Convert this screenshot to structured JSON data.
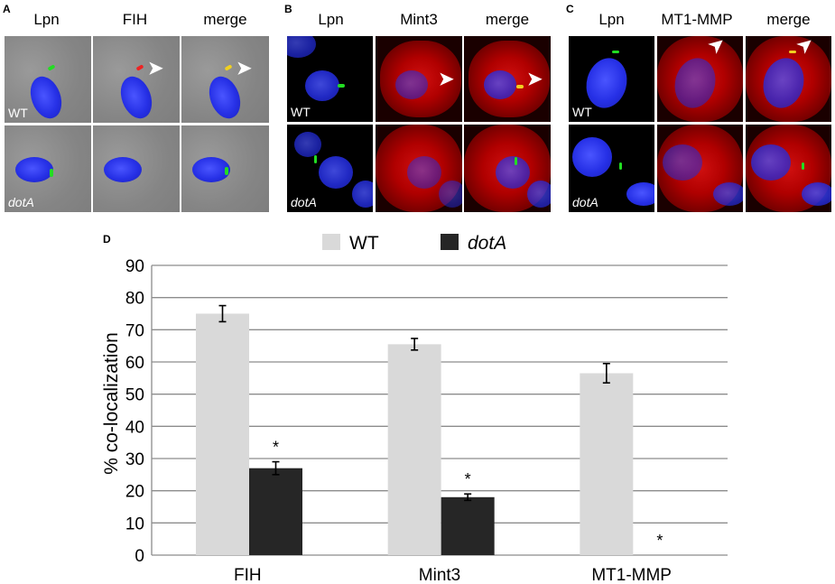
{
  "panels": {
    "A": {
      "letter": "A",
      "cols": [
        "Lpn",
        "FIH",
        "merge"
      ],
      "rows": [
        "WT",
        "dotA"
      ]
    },
    "B": {
      "letter": "B",
      "cols": [
        "Lpn",
        "Mint3",
        "merge"
      ],
      "rows": [
        "WT",
        "dotA"
      ]
    },
    "C": {
      "letter": "C",
      "cols": [
        "Lpn",
        "MT1-MMP",
        "merge"
      ],
      "rows": [
        "WT",
        "dotA"
      ]
    },
    "D": {
      "letter": "D"
    }
  },
  "colors": {
    "wt": "#d9d9d9",
    "dotA": "#262626",
    "grid": "#8c8c8c"
  },
  "chart_data": {
    "type": "bar",
    "categories": [
      "FIH",
      "Mint3",
      "MT1-MMP"
    ],
    "series": [
      {
        "name": "WT",
        "values": [
          75,
          65.5,
          56.5
        ],
        "errors": [
          2.5,
          1.8,
          3
        ]
      },
      {
        "name": "dotA",
        "values": [
          27,
          18,
          0
        ],
        "errors": [
          2,
          1,
          0
        ]
      }
    ],
    "significance": [
      "*",
      "*",
      "*"
    ],
    "ylabel": "% co-localization",
    "yticks": [
      0,
      10,
      20,
      30,
      40,
      50,
      60,
      70,
      80,
      90
    ],
    "ylim": [
      0,
      90
    ],
    "legend_position": "top",
    "grid": true
  }
}
